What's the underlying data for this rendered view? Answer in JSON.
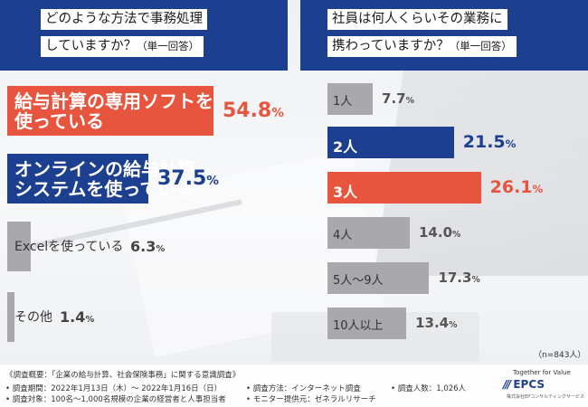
{
  "left_question": {
    "line1": "どのような方法で事務処理",
    "line2": "していますか？",
    "note": "（単一回答）"
  },
  "right_question": {
    "line1": "社員は何人くらいその業務に",
    "line2": "携わっていますか？",
    "note": "（単一回答）"
  },
  "colors": {
    "navy": "#1c3f8f",
    "orange": "#e8553e",
    "gray": "#a9a9ad"
  },
  "chart_data": [
    {
      "type": "bar",
      "title": "どのような方法で事務処理していますか？（単一回答）",
      "unit": "%",
      "xlim": [
        0,
        60
      ],
      "categories": [
        {
          "line1": "給与計算の専用ソフトを",
          "line2": "使っている",
          "num": "54.8",
          "value": 54.8
        },
        {
          "line1": "オンラインの給与計算",
          "line2": "システムを使っている",
          "num": "37.5",
          "value": 37.5
        },
        {
          "line1": "Excelを使っている",
          "line2": "",
          "num": "6.3",
          "value": 6.3
        },
        {
          "line1": "その他",
          "line2": "",
          "num": "1.4",
          "value": 1.4
        }
      ]
    },
    {
      "type": "bar",
      "title": "社員は何人くらいその業務に携わっていますか？（単一回答）",
      "unit": "%",
      "xlim": [
        0,
        30
      ],
      "categories": [
        {
          "label": "1人",
          "num": "7.7",
          "value": 7.7
        },
        {
          "label": "2人",
          "num": "21.5",
          "value": 21.5
        },
        {
          "label": "3人",
          "num": "26.1",
          "value": 26.1
        },
        {
          "label": "4人",
          "num": "14.0",
          "value": 14.0
        },
        {
          "label": "5人～9人",
          "num": "17.3",
          "value": 17.3
        },
        {
          "label": "10人以上",
          "num": "13.4",
          "value": 13.4
        }
      ],
      "n_note": "（n=843人）"
    }
  ],
  "footer": {
    "line1": "《調査概要：「企業の給与計算、社会保険事務」に関する意識調査》",
    "period": "• 調査期間：2022年1月13日（木）～ 2022年1月16日（日）",
    "method": "• 調査方法：インターネット調査",
    "people": "• 調査人数：1,026人",
    "target": "• 調査対象：100名～1,000名規模の企業の経営者と人事担当者",
    "monitor": "• モニター提供元：ゼネラルリサーチ"
  },
  "logo": {
    "tagline": "Together for Value",
    "name": "EPCS",
    "sub": "株式会社EPコンサルティングサービス"
  }
}
